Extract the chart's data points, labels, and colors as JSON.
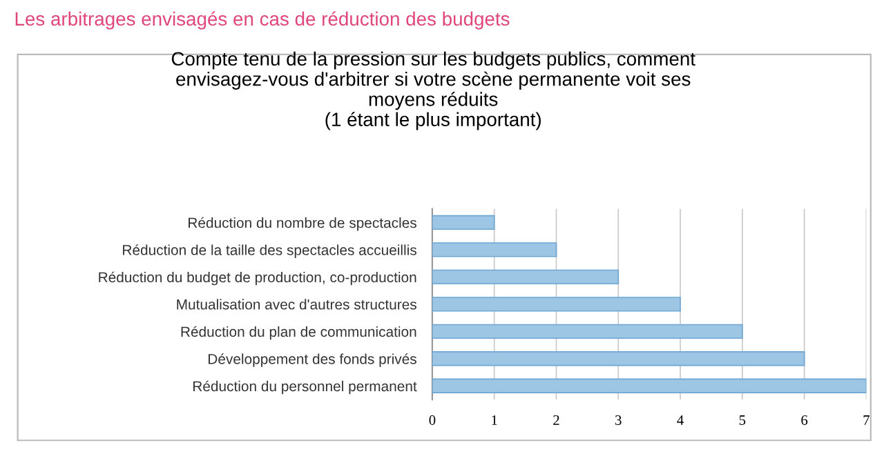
{
  "chart_data": {
    "type": "bar",
    "orientation": "horizontal",
    "title": "Les arbitrages envisagés en cas de réduction des budgets",
    "subtitle": "Compte tenu de la pression sur les budgets publics, comment\nenvisagez-vous d'arbitrer si votre scène permanente voit ses\nmoyens réduits\n(1 étant le plus important)",
    "categories": [
      "Réduction du nombre de spectacles",
      "Réduction de la taille des spectacles accueillis",
      "Réduction du budget de production, co-production",
      "Mutualisation avec d'autres structures",
      "Réduction du plan de communication",
      "Développement des fonds privés",
      "Réduction du personnel permanent"
    ],
    "values": [
      1,
      2,
      3,
      4,
      5,
      6,
      7
    ],
    "color": "#9dc6e4",
    "xlim": [
      0,
      7
    ],
    "xticks": [
      0,
      1,
      2,
      3,
      4,
      5,
      6,
      7
    ],
    "grid": "x",
    "legend": false
  }
}
